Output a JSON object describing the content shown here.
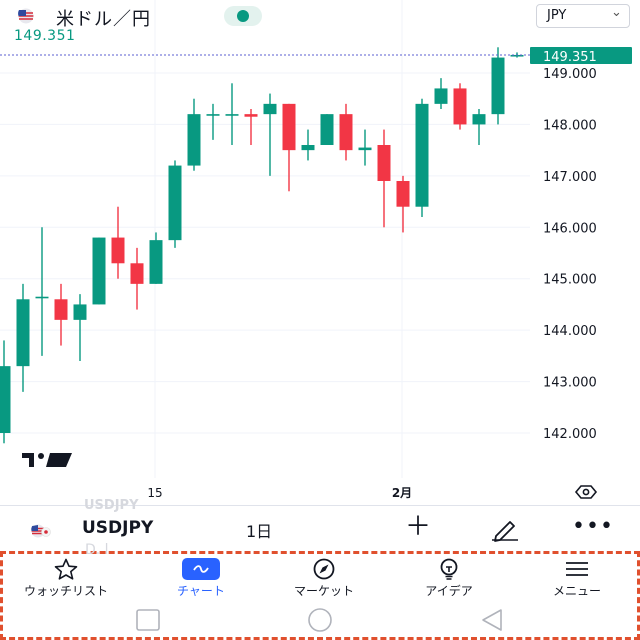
{
  "header": {
    "title": "米ドル／円",
    "last_price": "149.351",
    "currency": "JPY",
    "status_color": "#089981"
  },
  "chart_data": {
    "type": "candlestick",
    "symbol": "USDJPY",
    "interval": "1日",
    "price_label": "149.351",
    "y_ticks": [
      "149.000",
      "148.000",
      "147.000",
      "146.000",
      "145.000",
      "144.000",
      "143.000",
      "142.000"
    ],
    "x_ticks": [
      "15",
      "2月"
    ],
    "ylim": [
      141.4,
      149.8
    ],
    "colors": {
      "up": "#089981",
      "down": "#f23645",
      "price_line": "#5b5fd0",
      "grid": "#f0f3fa"
    },
    "candles": [
      {
        "o": 142.0,
        "h": 143.8,
        "l": 141.8,
        "c": 143.3
      },
      {
        "o": 143.3,
        "h": 144.9,
        "l": 142.8,
        "c": 144.6
      },
      {
        "o": 144.65,
        "h": 146.0,
        "l": 143.5,
        "c": 144.65
      },
      {
        "o": 144.6,
        "h": 144.9,
        "l": 143.7,
        "c": 144.2
      },
      {
        "o": 144.2,
        "h": 144.7,
        "l": 143.4,
        "c": 144.5
      },
      {
        "o": 144.5,
        "h": 145.8,
        "l": 144.5,
        "c": 145.8
      },
      {
        "o": 145.8,
        "h": 146.4,
        "l": 145.0,
        "c": 145.3
      },
      {
        "o": 145.3,
        "h": 145.6,
        "l": 144.4,
        "c": 144.9
      },
      {
        "o": 144.9,
        "h": 145.9,
        "l": 144.9,
        "c": 145.75
      },
      {
        "o": 145.75,
        "h": 147.3,
        "l": 145.6,
        "c": 147.2
      },
      {
        "o": 147.2,
        "h": 148.5,
        "l": 147.1,
        "c": 148.2
      },
      {
        "o": 148.2,
        "h": 148.4,
        "l": 147.7,
        "c": 148.2
      },
      {
        "o": 148.2,
        "h": 148.8,
        "l": 147.6,
        "c": 148.2
      },
      {
        "o": 148.2,
        "h": 148.3,
        "l": 147.6,
        "c": 148.15
      },
      {
        "o": 148.2,
        "h": 148.6,
        "l": 147.0,
        "c": 148.4
      },
      {
        "o": 148.4,
        "h": 148.4,
        "l": 146.7,
        "c": 147.5
      },
      {
        "o": 147.5,
        "h": 147.9,
        "l": 147.3,
        "c": 147.6
      },
      {
        "o": 147.6,
        "h": 148.2,
        "l": 147.6,
        "c": 148.2
      },
      {
        "o": 148.2,
        "h": 148.4,
        "l": 147.3,
        "c": 147.5
      },
      {
        "o": 147.5,
        "h": 147.9,
        "l": 147.2,
        "c": 147.55
      },
      {
        "o": 147.6,
        "h": 147.9,
        "l": 146.0,
        "c": 146.9
      },
      {
        "o": 146.9,
        "h": 147.0,
        "l": 145.9,
        "c": 146.4
      },
      {
        "o": 146.4,
        "h": 148.5,
        "l": 146.2,
        "c": 148.4
      },
      {
        "o": 148.4,
        "h": 148.9,
        "l": 148.3,
        "c": 148.7
      },
      {
        "o": 148.7,
        "h": 148.8,
        "l": 147.9,
        "c": 148.0
      },
      {
        "o": 148.0,
        "h": 148.3,
        "l": 147.6,
        "c": 148.2
      },
      {
        "o": 148.2,
        "h": 149.5,
        "l": 148.0,
        "c": 149.3
      },
      {
        "o": 149.35,
        "h": 149.4,
        "l": 149.3,
        "c": 149.351
      }
    ]
  },
  "symbol_bar": {
    "ghost_symbol": "USDJPY",
    "symbol": "USDJPY",
    "interval": "1日",
    "add_label": "＋",
    "more_label": "•••"
  },
  "nav": {
    "ghost_text": "D. l",
    "items": [
      {
        "label": "ウォッチリスト",
        "icon": "star-icon"
      },
      {
        "label": "チャート",
        "icon": "chart-wave-icon"
      },
      {
        "label": "マーケット",
        "icon": "compass-icon"
      },
      {
        "label": "アイデア",
        "icon": "lightbulb-icon"
      },
      {
        "label": "メニュー",
        "icon": "hamburger-menu-icon"
      }
    ]
  }
}
